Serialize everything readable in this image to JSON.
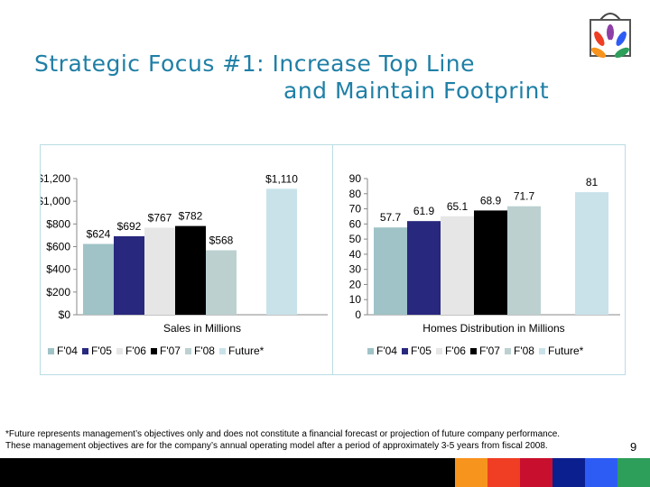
{
  "title": {
    "line1": "Strategic Focus #1: Increase Top Line",
    "line2": "and Maintain Footprint"
  },
  "footnote": {
    "line1": "*Future represents management’s objectives only and does not constitute a financial forecast or projection of future company performance.",
    "line2": "These management objectives are for the company’s annual operating model after a period of approximately 3-5 years from fiscal 2008."
  },
  "page_number": "9",
  "logo_icon": "nbc-peacock-shopping-bag-icon",
  "bottom_bar_colors": [
    "#f7941d",
    "#ef3e23",
    "#c8102e",
    "#0b1f8f",
    "#2d5cf5",
    "#2e9e5b"
  ],
  "series_colors": {
    "F'04": "#9fc3c7",
    "F'05": "#28287e",
    "F'06": "#e6e6e6",
    "F'07": "#000000",
    "F'08": "#bcd0d0",
    "Future*": "#c9e2ea"
  },
  "chart_data": [
    {
      "type": "bar",
      "xlabel": "Sales in Millions",
      "ylabel": "",
      "ylim": [
        0,
        1200
      ],
      "yticks": [
        0,
        200,
        400,
        600,
        800,
        1000,
        1200
      ],
      "ytick_labels": [
        "$0",
        "$200",
        "$400",
        "$600",
        "$800",
        "$1,000",
        "$1,200"
      ],
      "grid": false,
      "legend_position": "bottom",
      "series": [
        {
          "name": "F'04",
          "values": [
            624
          ],
          "label": "$624"
        },
        {
          "name": "F'05",
          "values": [
            692
          ],
          "label": "$692"
        },
        {
          "name": "F'06",
          "values": [
            767
          ],
          "label": "$767"
        },
        {
          "name": "F'07",
          "values": [
            782
          ],
          "label": "$782"
        },
        {
          "name": "F'08",
          "values": [
            568
          ],
          "label": "$568"
        },
        {
          "name": "Future*",
          "values": [
            1110
          ],
          "label": "$1,110"
        }
      ]
    },
    {
      "type": "bar",
      "xlabel": "Homes Distribution in Millions",
      "ylabel": "",
      "ylim": [
        0,
        90
      ],
      "yticks": [
        0,
        10,
        20,
        30,
        40,
        50,
        60,
        70,
        80,
        90
      ],
      "ytick_labels": [
        "0",
        "10",
        "20",
        "30",
        "40",
        "50",
        "60",
        "70",
        "80",
        "90"
      ],
      "grid": false,
      "legend_position": "bottom",
      "series": [
        {
          "name": "F'04",
          "values": [
            57.7
          ],
          "label": "57.7"
        },
        {
          "name": "F'05",
          "values": [
            61.9
          ],
          "label": "61.9"
        },
        {
          "name": "F'06",
          "values": [
            65.1
          ],
          "label": "65.1"
        },
        {
          "name": "F'07",
          "values": [
            68.9
          ],
          "label": "68.9"
        },
        {
          "name": "F'08",
          "values": [
            71.7
          ],
          "label": "71.7"
        },
        {
          "name": "Future*",
          "values": [
            81
          ],
          "label": "81"
        }
      ]
    }
  ]
}
